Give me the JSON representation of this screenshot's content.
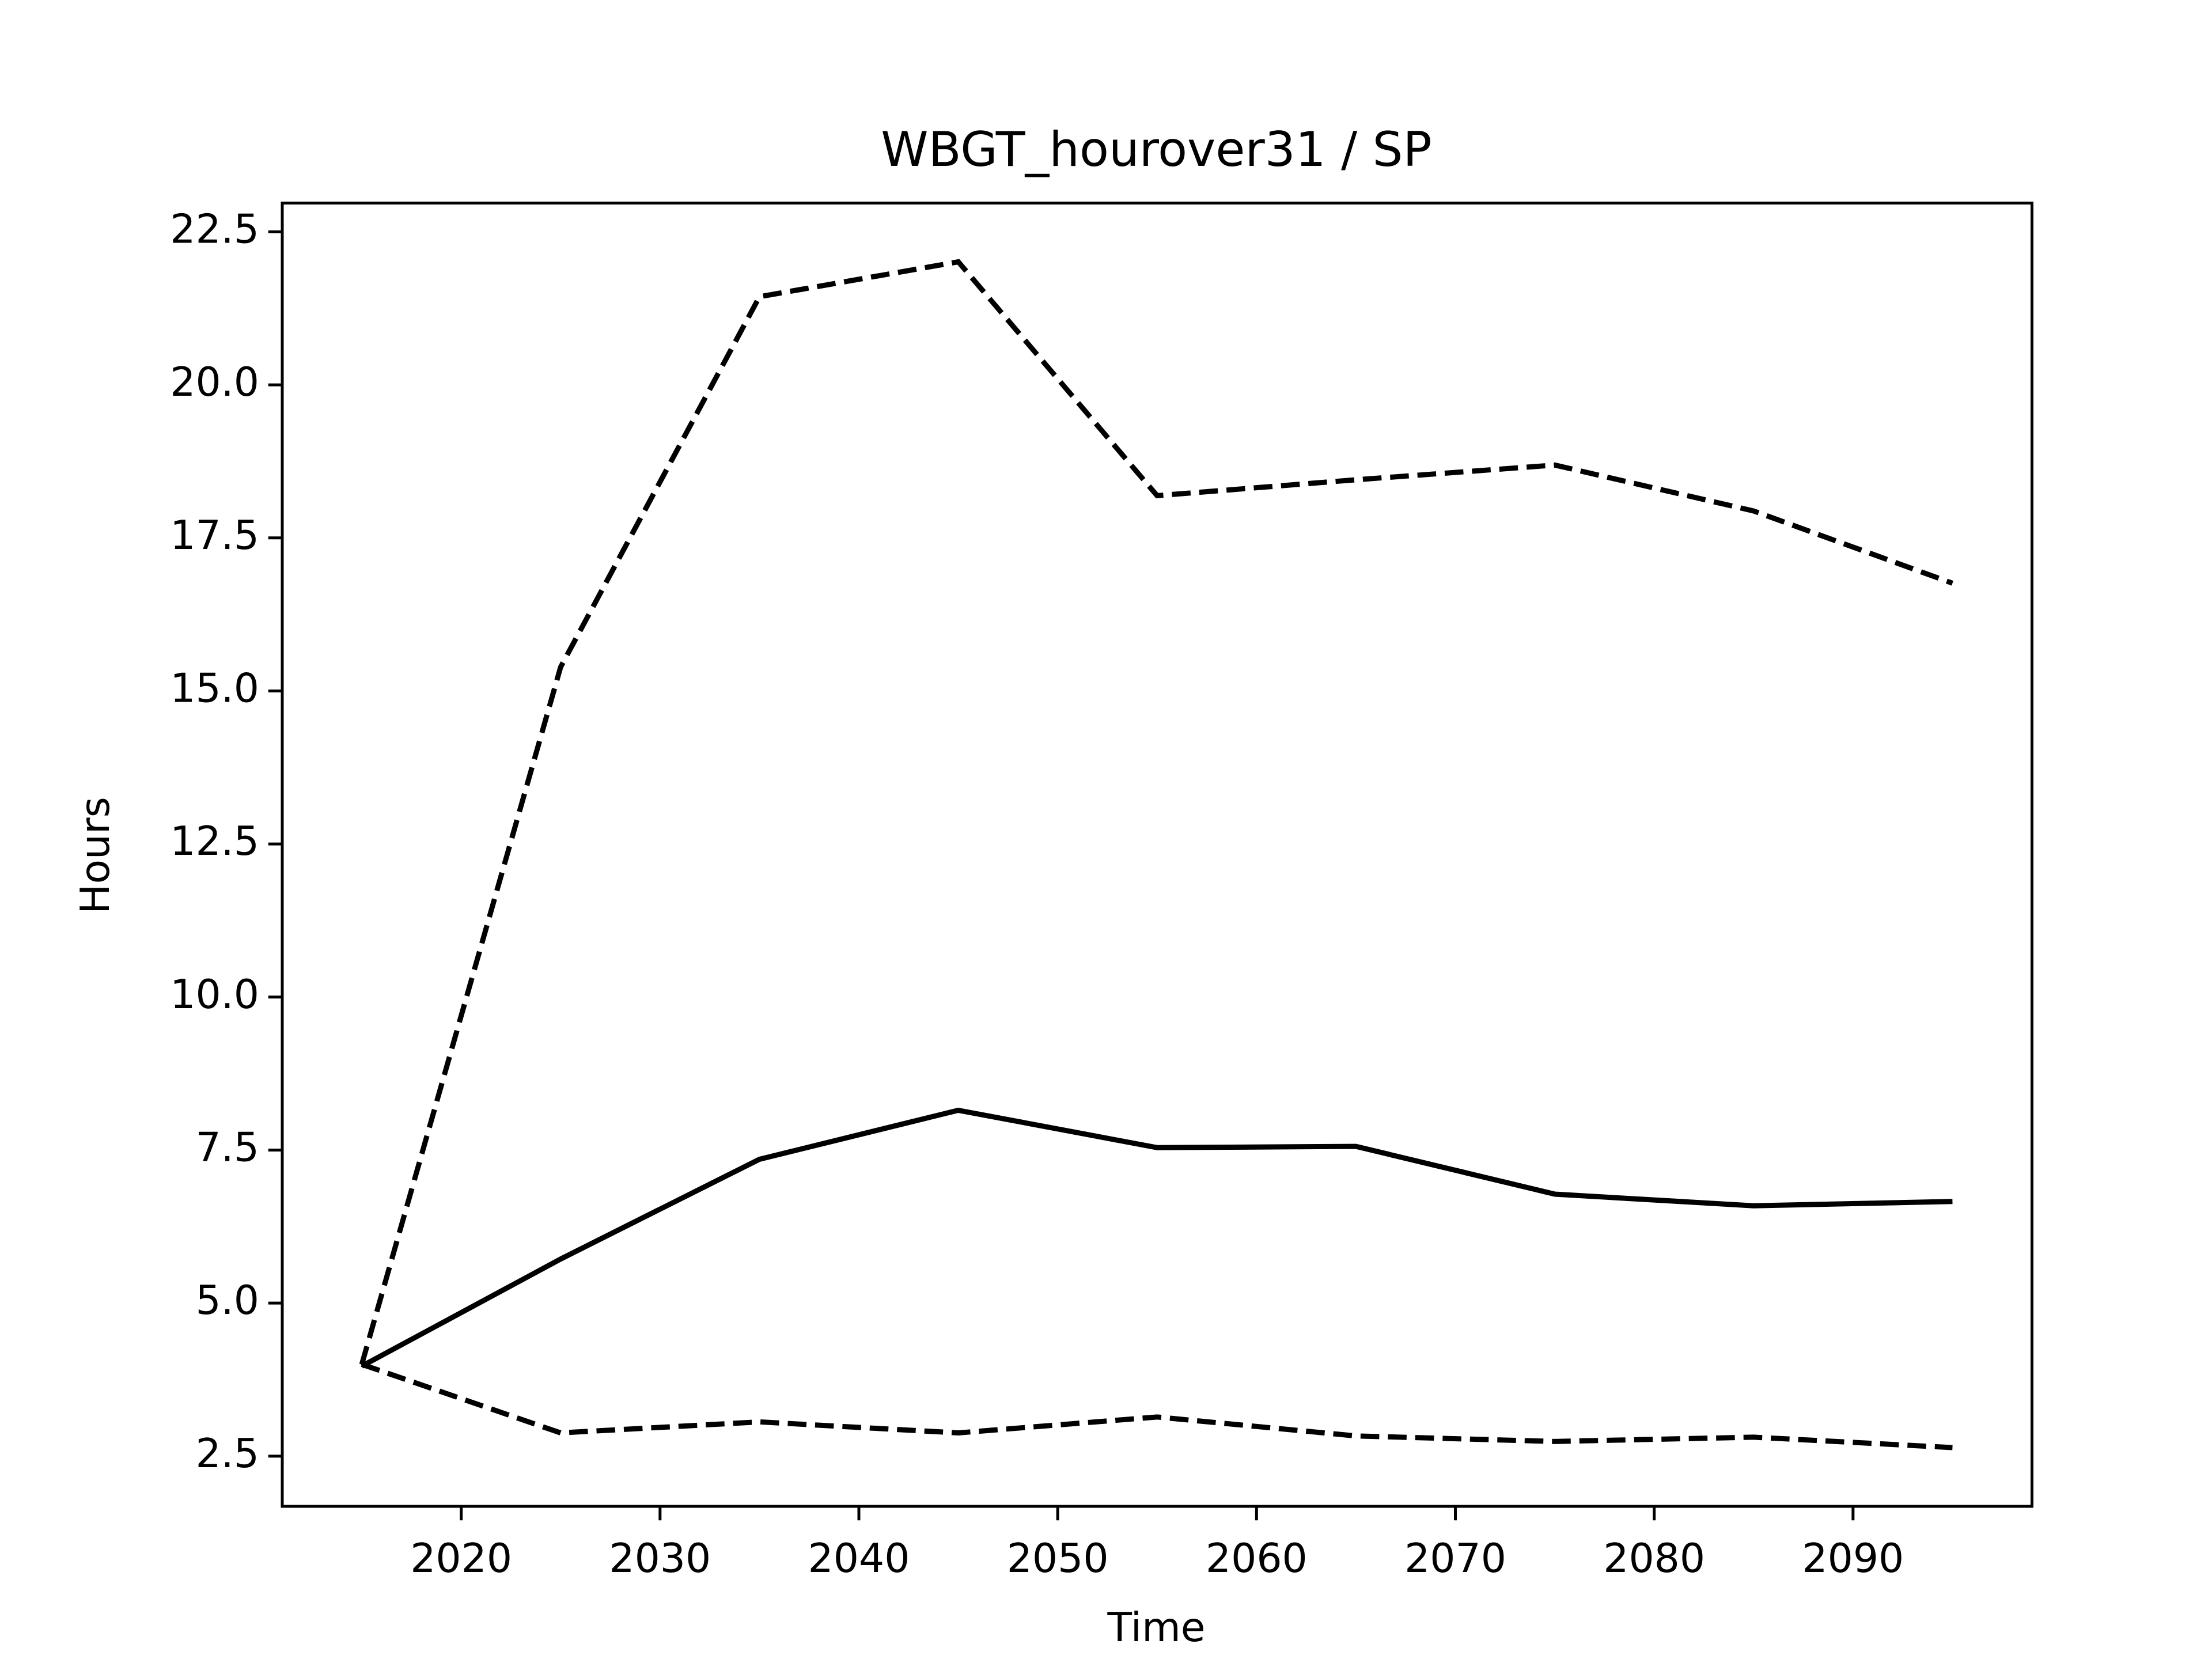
{
  "chart_data": {
    "type": "line",
    "title": "WBGT_hourover31 / SP",
    "xlabel": "Time",
    "ylabel": "Hours",
    "x": [
      2015,
      2025,
      2035,
      2045,
      2055,
      2065,
      2075,
      2085,
      2095
    ],
    "series": [
      {
        "color": "#000000",
        "linestyle": "solid",
        "values": [
          3.97,
          5.72,
          7.35,
          8.15,
          7.54,
          7.56,
          6.78,
          6.59,
          6.66
        ]
      },
      {
        "color": "#000000",
        "linestyle": "dashed",
        "values": [
          4.0,
          15.39,
          21.44,
          22.01,
          18.19,
          18.45,
          18.69,
          17.94,
          16.76
        ]
      },
      {
        "color": "#000000",
        "linestyle": "dashed",
        "values": [
          4.0,
          2.88,
          3.06,
          2.88,
          3.14,
          2.83,
          2.74,
          2.81,
          2.64
        ]
      }
    ],
    "xlim": [
      2011,
      2099
    ],
    "ylim": [
      1.68,
      22.97
    ],
    "xticks": [
      2020,
      2030,
      2040,
      2050,
      2060,
      2070,
      2080,
      2090
    ],
    "yticks": [
      2.5,
      {
        "value": 5,
        "label": "5.0"
      },
      7.5,
      {
        "value": 10,
        "label": "10.0"
      },
      12.5,
      {
        "value": 15,
        "label": "15.0"
      },
      17.5,
      {
        "value": 20,
        "label": "20.0"
      },
      22.5
    ],
    "grid": false
  }
}
